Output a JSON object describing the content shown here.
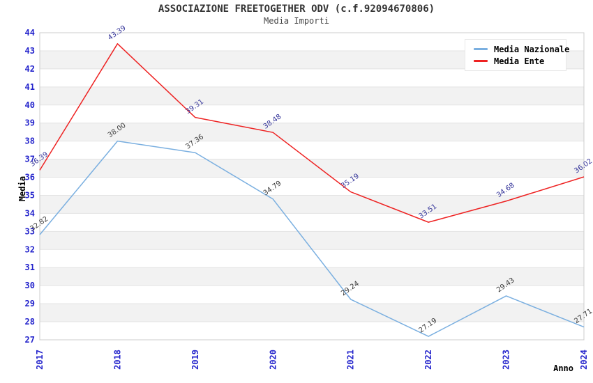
{
  "header": {
    "title": "ASSOCIAZIONE FREETOGETHER ODV (c.f.92094670806)",
    "subtitle": "Media Importi"
  },
  "axes": {
    "x_title": "Anno",
    "y_title": "Media",
    "tick_color": "#2424CC"
  },
  "legend": {
    "position": "top-right",
    "items": [
      {
        "label": "Media Nazionale",
        "color": "#7AAFE0"
      },
      {
        "label": "Media Ente",
        "color": "#EE2222"
      }
    ]
  },
  "colors": {
    "background": "#FFFFFF",
    "band_fill": "#F2F2F2",
    "grid_line": "#E3E3E3",
    "plot_border": "#CCCCCC",
    "title_text": "#333333",
    "tick_text": "#2424CC",
    "nazionale_line": "#7AAFE0",
    "ente_line": "#EE2222",
    "nazionale_value_label": "#383838",
    "ente_value_label": "#333399"
  },
  "chart_data": {
    "type": "line",
    "title": "ASSOCIAZIONE FREETOGETHER ODV (c.f.92094670806)",
    "subtitle": "Media Importi",
    "xlabel": "Anno",
    "ylabel": "Media",
    "categories": [
      "2017",
      "2018",
      "2019",
      "2020",
      "2021",
      "2022",
      "2023",
      "2024"
    ],
    "series": [
      {
        "name": "Media Nazionale",
        "color": "#7AAFE0",
        "label_color": "#383838",
        "values": [
          32.82,
          38.0,
          37.36,
          34.79,
          29.24,
          27.19,
          29.43,
          27.71
        ]
      },
      {
        "name": "Media Ente",
        "color": "#EE2222",
        "label_color": "#333399",
        "values": [
          36.39,
          43.39,
          39.31,
          38.48,
          35.19,
          33.51,
          34.68,
          36.02
        ]
      }
    ],
    "ylim": [
      27,
      44
    ],
    "ytick_step": 1,
    "grid": {
      "alternating_bands": true,
      "vertical_lines": false
    },
    "legend_position": "top-right",
    "value_labels": {
      "decimals": 2,
      "rotation_deg": -35
    }
  }
}
